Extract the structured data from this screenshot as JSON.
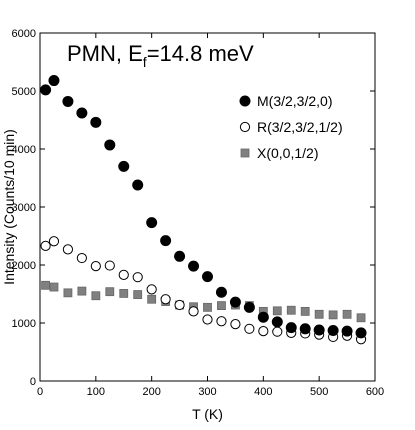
{
  "chart_data": {
    "type": "scatter",
    "title_main": "PMN, E",
    "title_sub": "f",
    "title_rest": "=14.8 meV",
    "xlabel": "T (K)",
    "ylabel": "Intensity (Counts/10 min)",
    "xlim": [
      0,
      600
    ],
    "ylim": [
      0,
      6000
    ],
    "xticks": [
      0,
      100,
      200,
      300,
      400,
      500,
      600
    ],
    "yticks": [
      0,
      1000,
      2000,
      3000,
      4000,
      5000,
      6000
    ],
    "grid": false,
    "legend_position": "top-right",
    "series": [
      {
        "name": "M(3/2,3/2,0)",
        "marker": "filled-circle",
        "color": "#000000",
        "x": [
          10,
          25,
          50,
          75,
          100,
          125,
          150,
          175,
          200,
          225,
          250,
          275,
          300,
          325,
          350,
          375,
          400,
          425,
          450,
          475,
          500,
          525,
          550,
          575
        ],
        "y": [
          5020,
          5180,
          4820,
          4620,
          4460,
          4070,
          3700,
          3380,
          2730,
          2420,
          2150,
          1980,
          1800,
          1530,
          1360,
          1270,
          1100,
          1020,
          920,
          900,
          880,
          870,
          860,
          830
        ]
      },
      {
        "name": "R(3/2,3/2,1/2)",
        "marker": "open-circle",
        "color": "#000000",
        "x": [
          10,
          25,
          50,
          75,
          100,
          125,
          150,
          175,
          200,
          225,
          250,
          275,
          300,
          325,
          350,
          375,
          400,
          425,
          450,
          475,
          500,
          525,
          550,
          575
        ],
        "y": [
          2330,
          2410,
          2270,
          2120,
          1980,
          1990,
          1830,
          1790,
          1580,
          1410,
          1310,
          1200,
          1060,
          1030,
          980,
          900,
          860,
          850,
          830,
          820,
          800,
          760,
          780,
          720
        ]
      },
      {
        "name": "X(0,0,1/2)",
        "marker": "square",
        "color": "#808080",
        "x": [
          10,
          25,
          50,
          75,
          100,
          125,
          150,
          175,
          200,
          225,
          250,
          275,
          300,
          325,
          350,
          375,
          400,
          425,
          450,
          475,
          500,
          525,
          550,
          575
        ],
        "y": [
          1650,
          1620,
          1520,
          1550,
          1470,
          1540,
          1510,
          1490,
          1410,
          1370,
          1310,
          1280,
          1270,
          1300,
          1310,
          1300,
          1200,
          1210,
          1220,
          1200,
          1150,
          1140,
          1150,
          1090
        ]
      }
    ]
  }
}
